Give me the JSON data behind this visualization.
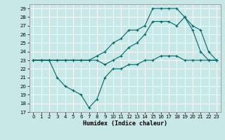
{
  "xlabel": "Humidex (Indice chaleur)",
  "xlim": [
    -0.5,
    23.5
  ],
  "ylim": [
    17,
    29.5
  ],
  "yticks": [
    17,
    18,
    19,
    20,
    21,
    22,
    23,
    24,
    25,
    26,
    27,
    28,
    29
  ],
  "xticks": [
    0,
    1,
    2,
    3,
    4,
    5,
    6,
    7,
    8,
    9,
    10,
    11,
    12,
    13,
    14,
    15,
    16,
    17,
    18,
    19,
    20,
    21,
    22,
    23
  ],
  "bg_color": "#c8e8e8",
  "grid_color": "#aad8d8",
  "line_color": "#006666",
  "line_min_x": [
    0,
    1,
    2,
    3,
    4,
    5,
    6,
    7,
    8,
    9,
    10,
    11,
    12,
    13,
    14,
    15,
    16,
    17,
    18,
    19,
    20,
    21,
    22,
    23
  ],
  "line_min_y": [
    23,
    23,
    23,
    21,
    20,
    19.5,
    19,
    17.5,
    18.5,
    21,
    22,
    22,
    22.5,
    22.5,
    23,
    23,
    23.5,
    23.5,
    23.5,
    23,
    23,
    23,
    23,
    23
  ],
  "line_mid_x": [
    0,
    1,
    2,
    3,
    4,
    5,
    6,
    7,
    8,
    9,
    10,
    11,
    12,
    13,
    14,
    15,
    16,
    17,
    18,
    19,
    20,
    21,
    22,
    23
  ],
  "line_mid_y": [
    23,
    23,
    23,
    23,
    23,
    23,
    23,
    23,
    23,
    22.5,
    23,
    23.5,
    24.5,
    25,
    26,
    27.5,
    27.5,
    27.5,
    27,
    28,
    26.5,
    24,
    23,
    23
  ],
  "line_max_x": [
    0,
    1,
    2,
    3,
    4,
    5,
    6,
    7,
    8,
    9,
    10,
    11,
    12,
    13,
    14,
    15,
    16,
    17,
    18,
    19,
    20,
    21,
    22,
    23
  ],
  "line_max_y": [
    23,
    23,
    23,
    23,
    23,
    23,
    23,
    23,
    23.5,
    24,
    25,
    25.5,
    26.5,
    26.5,
    27,
    29,
    29,
    29,
    29,
    28,
    27,
    26.5,
    24,
    23
  ]
}
